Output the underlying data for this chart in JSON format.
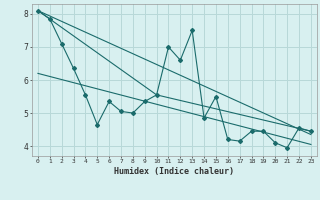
{
  "xlabel": "Humidex (Indice chaleur)",
  "background_color": "#d8f0f0",
  "grid_color": "#b8d8d8",
  "line_color": "#1a6b6b",
  "xlim": [
    -0.5,
    23.5
  ],
  "ylim": [
    3.7,
    8.3
  ],
  "xticks": [
    0,
    1,
    2,
    3,
    4,
    5,
    6,
    7,
    8,
    9,
    10,
    11,
    12,
    13,
    14,
    15,
    16,
    17,
    18,
    19,
    20,
    21,
    22,
    23
  ],
  "yticks": [
    4,
    5,
    6,
    7,
    8
  ],
  "series_main_x": [
    0,
    1,
    2,
    3,
    4,
    5,
    6,
    7,
    8,
    9,
    10,
    11,
    12,
    13,
    14,
    15,
    16,
    17,
    18,
    19,
    20,
    21,
    22,
    23
  ],
  "series_main_y": [
    8.1,
    7.85,
    7.1,
    6.35,
    5.55,
    4.65,
    5.35,
    5.05,
    5.0,
    5.35,
    5.55,
    7.0,
    6.6,
    7.5,
    4.85,
    5.5,
    4.2,
    4.15,
    4.45,
    4.45,
    4.1,
    3.95,
    4.55,
    4.45
  ],
  "trend_line1_x": [
    0,
    23
  ],
  "trend_line1_y": [
    8.1,
    4.35
  ],
  "trend_line2_x": [
    0,
    23
  ],
  "trend_line2_y": [
    6.2,
    4.05
  ],
  "connect_line_x": [
    0,
    10,
    23
  ],
  "connect_line_y": [
    8.1,
    5.55,
    4.45
  ]
}
